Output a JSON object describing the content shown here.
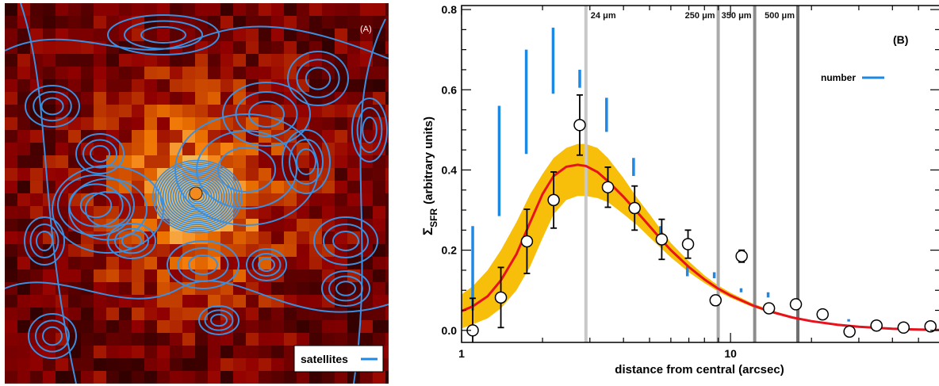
{
  "panel_a": {
    "label": "(A)",
    "legend": {
      "label": "satellites",
      "color": "#1e88e5"
    },
    "central_marker_color": "#f28a1e",
    "contour_color": "#3a8fe0"
  },
  "chart_data": {
    "type": "scatter",
    "panel_label": "(B)",
    "xlabel": "distance from central (arcsec)",
    "ylabel": "Σ_SFR (arbitrary units)",
    "ylabel_main": "Σ",
    "ylabel_sub": "SFR",
    "ylabel_rest": "(arbitrary units)",
    "x_scale": "log",
    "xlim": [
      1,
      60
    ],
    "ylim": [
      -0.03,
      0.81
    ],
    "x_ticks": [
      {
        "value": 1,
        "label": "1"
      },
      {
        "value": 10,
        "label": "10"
      }
    ],
    "y_ticks": [
      {
        "value": 0.0,
        "label": "0.0"
      },
      {
        "value": 0.2,
        "label": "0.2"
      },
      {
        "value": 0.4,
        "label": "0.4"
      },
      {
        "value": 0.6,
        "label": "0.6"
      },
      {
        "value": 0.8,
        "label": "0.8"
      }
    ],
    "legend": {
      "label": "number",
      "color": "#1e88e5",
      "position": "top-right"
    },
    "beam_lines": [
      {
        "label": "24 μm",
        "x": 2.9,
        "color": "#c8c8c8"
      },
      {
        "label": "250 μm",
        "x": 9.0,
        "color": "#aaaaaa"
      },
      {
        "label": "350 μm",
        "x": 12.3,
        "color": "#8c8c8c"
      },
      {
        "label": "500 μm",
        "x": 17.8,
        "color": "#6e6e6e"
      }
    ],
    "points": [
      {
        "x": 1.1,
        "y": 0.0,
        "err": 0.08
      },
      {
        "x": 1.4,
        "y": 0.082,
        "err": 0.075
      },
      {
        "x": 1.75,
        "y": 0.222,
        "err": 0.08
      },
      {
        "x": 2.2,
        "y": 0.325,
        "err": 0.07
      },
      {
        "x": 2.75,
        "y": 0.512,
        "err": 0.075
      },
      {
        "x": 3.5,
        "y": 0.357,
        "err": 0.05
      },
      {
        "x": 4.4,
        "y": 0.305,
        "err": 0.055
      },
      {
        "x": 5.55,
        "y": 0.227,
        "err": 0.05
      },
      {
        "x": 6.95,
        "y": 0.215,
        "err": 0.035
      },
      {
        "x": 8.8,
        "y": 0.075,
        "err": 0.012
      },
      {
        "x": 11.0,
        "y": 0.185,
        "err": 0.015
      },
      {
        "x": 13.9,
        "y": 0.055,
        "err": 0.008
      },
      {
        "x": 17.5,
        "y": 0.065,
        "err": 0.008
      },
      {
        "x": 22.0,
        "y": 0.04,
        "err": 0.006
      },
      {
        "x": 27.7,
        "y": -0.003,
        "err": 0.006
      },
      {
        "x": 34.9,
        "y": 0.012,
        "err": 0.004
      },
      {
        "x": 44.0,
        "y": 0.007,
        "err": 0.004
      },
      {
        "x": 55.4,
        "y": 0.01,
        "err": 0.004
      },
      {
        "x": 69.8,
        "y": 0.0,
        "err": 0.004
      }
    ],
    "number_segments": [
      {
        "x": 1.1,
        "y_low": 0.05,
        "y_high": 0.26
      },
      {
        "x": 1.38,
        "y_low": 0.285,
        "y_high": 0.56
      },
      {
        "x": 1.74,
        "y_low": 0.44,
        "y_high": 0.7
      },
      {
        "x": 2.19,
        "y_low": 0.59,
        "y_high": 0.755
      },
      {
        "x": 2.75,
        "y_low": 0.605,
        "y_high": 0.65
      },
      {
        "x": 3.46,
        "y_low": 0.495,
        "y_high": 0.58
      },
      {
        "x": 4.36,
        "y_low": 0.385,
        "y_high": 0.43
      },
      {
        "x": 5.49,
        "y_low": 0.24,
        "y_high": 0.26
      },
      {
        "x": 6.91,
        "y_low": 0.135,
        "y_high": 0.16
      },
      {
        "x": 8.7,
        "y_low": 0.13,
        "y_high": 0.145
      },
      {
        "x": 10.95,
        "y_low": 0.095,
        "y_high": 0.105
      },
      {
        "x": 13.8,
        "y_low": 0.082,
        "y_high": 0.095
      },
      {
        "x": 17.4,
        "y_low": 0.05,
        "y_high": 0.062
      },
      {
        "x": 21.9,
        "y_low": 0.036,
        "y_high": 0.044
      },
      {
        "x": 27.5,
        "y_low": 0.022,
        "y_high": 0.028
      }
    ],
    "model_curve": {
      "color": "#e8121c",
      "x": [
        1.0,
        1.1,
        1.25,
        1.4,
        1.6,
        1.8,
        2.0,
        2.2,
        2.45,
        2.7,
        2.9,
        3.2,
        3.5,
        4.0,
        4.5,
        5.0,
        5.5,
        6.0,
        7.0,
        8.0,
        9.0,
        10.0,
        12.0,
        14.0,
        17.0,
        20.0,
        25.0,
        30.0,
        40.0,
        50.0,
        60.0
      ],
      "y": [
        0.048,
        0.06,
        0.085,
        0.125,
        0.19,
        0.27,
        0.34,
        0.385,
        0.408,
        0.413,
        0.41,
        0.395,
        0.372,
        0.333,
        0.295,
        0.26,
        0.228,
        0.2,
        0.158,
        0.127,
        0.104,
        0.087,
        0.063,
        0.047,
        0.032,
        0.023,
        0.014,
        0.009,
        0.004,
        0.002,
        0.001
      ]
    },
    "model_band": {
      "color": "#f7bf0a",
      "x": [
        1.0,
        1.1,
        1.25,
        1.4,
        1.6,
        1.8,
        2.0,
        2.2,
        2.45,
        2.7,
        2.9,
        3.2,
        3.5,
        4.0,
        4.5,
        5.0,
        5.5,
        6.0,
        7.0,
        8.0,
        9.0,
        10.0,
        12.0,
        14.0,
        17.0,
        20.0,
        25.0,
        30.0,
        40.0,
        50.0,
        60.0
      ],
      "lower": [
        0.005,
        0.015,
        0.03,
        0.055,
        0.1,
        0.16,
        0.23,
        0.29,
        0.325,
        0.335,
        0.335,
        0.33,
        0.32,
        0.29,
        0.262,
        0.232,
        0.206,
        0.182,
        0.145,
        0.118,
        0.097,
        0.081,
        0.059,
        0.044,
        0.03,
        0.021,
        0.013,
        0.008,
        0.004,
        0.002,
        0.001
      ],
      "upper": [
        0.09,
        0.11,
        0.15,
        0.2,
        0.27,
        0.34,
        0.39,
        0.43,
        0.455,
        0.465,
        0.465,
        0.455,
        0.43,
        0.38,
        0.33,
        0.29,
        0.252,
        0.218,
        0.172,
        0.137,
        0.112,
        0.094,
        0.068,
        0.051,
        0.035,
        0.025,
        0.015,
        0.01,
        0.005,
        0.003,
        0.002
      ]
    }
  }
}
